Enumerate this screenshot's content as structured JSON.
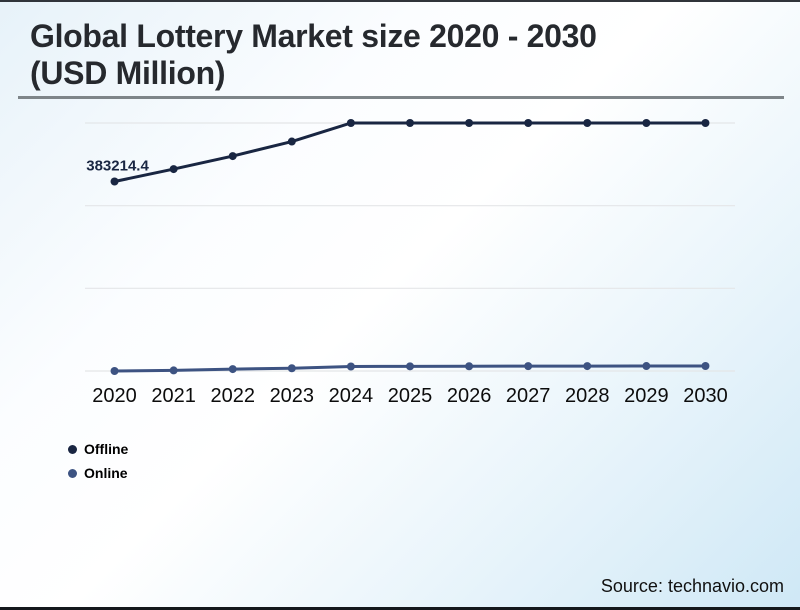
{
  "header": {
    "title_line1": "Global Lottery Market size 2020 - 2030",
    "title_line2": "(USD Million)"
  },
  "source": "Source: technavio.com",
  "colors": {
    "offline": "#192642",
    "online": "#3d5382",
    "grid": "#e4e6e8",
    "title_text": "#26292e",
    "axis_text": "#0c0c0c",
    "data_label": "#192642"
  },
  "chart_data": {
    "type": "line",
    "title": "Global Lottery Market size 2020 - 2030 (USD Million)",
    "categories": [
      "2020",
      "2021",
      "2022",
      "2023",
      "2024",
      "2025",
      "2026",
      "2027",
      "2028",
      "2029",
      "2030"
    ],
    "series": [
      {
        "name": "Offline",
        "color": "#192642",
        "values": [
          383214.4,
          408000,
          434000,
          463000,
          500000,
          500000,
          500000,
          500000,
          500000,
          500000,
          500000
        ],
        "data_label": "383214.4"
      },
      {
        "name": "Online",
        "color": "#3d5382",
        "values": [
          5000,
          6200,
          8800,
          10500,
          14000,
          14300,
          14500,
          14700,
          14800,
          14900,
          15000
        ]
      }
    ],
    "ylim": [
      5000,
      500000
    ],
    "xlabel": "",
    "ylabel": "",
    "grid": true,
    "gridlines": 4,
    "legend_position": "bottom-left"
  }
}
